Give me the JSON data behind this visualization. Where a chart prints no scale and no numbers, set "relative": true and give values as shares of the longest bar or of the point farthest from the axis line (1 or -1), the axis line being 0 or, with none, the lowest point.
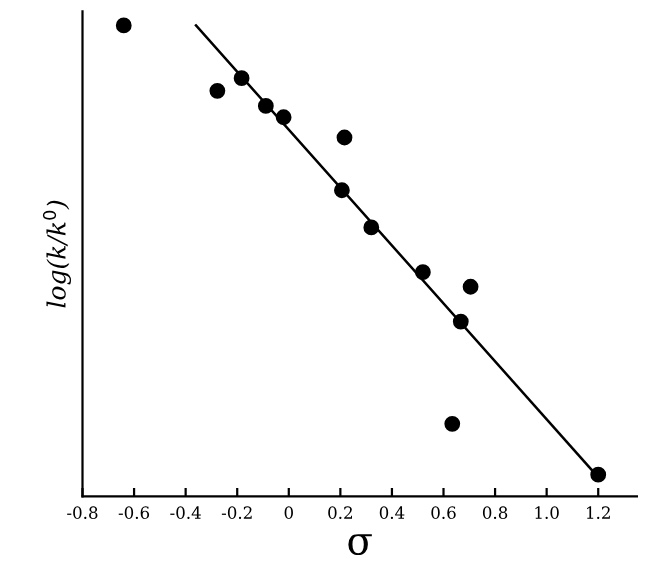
{
  "chart_data": {
    "type": "scatter",
    "xlabel": "σ",
    "ylabel": "log(k/k$^{0}$)",
    "relative": true,
    "marker": "circle",
    "grid": false,
    "xlim": [
      -0.8,
      1.35
    ],
    "xticks": [
      -0.8,
      -0.6,
      -0.4,
      -0.2,
      0,
      0.2,
      0.4,
      0.6,
      0.8,
      {
        "value": 1.0,
        "label": "1.0"
      },
      1.2
    ],
    "tick_labels": "x",
    "series": [
      {
        "color": "#000000",
        "x": [
          -0.64,
          -0.277,
          -0.183,
          -0.089,
          -0.02,
          0.216,
          0.206,
          0.32,
          0.52,
          0.705,
          0.667,
          0.634,
          1.2
        ],
        "values": [
          1.0,
          0.861,
          0.888,
          0.829,
          0.805,
          0.762,
          0.65,
          0.571,
          0.476,
          0.445,
          0.371,
          0.154,
          0.046
        ]
      },
      {
        "type": "line",
        "color": "#000000",
        "line_style": "solid",
        "marker": "none",
        "x": [
          -0.36,
          1.18
        ],
        "values": [
          1.0,
          0.053
        ]
      }
    ]
  }
}
